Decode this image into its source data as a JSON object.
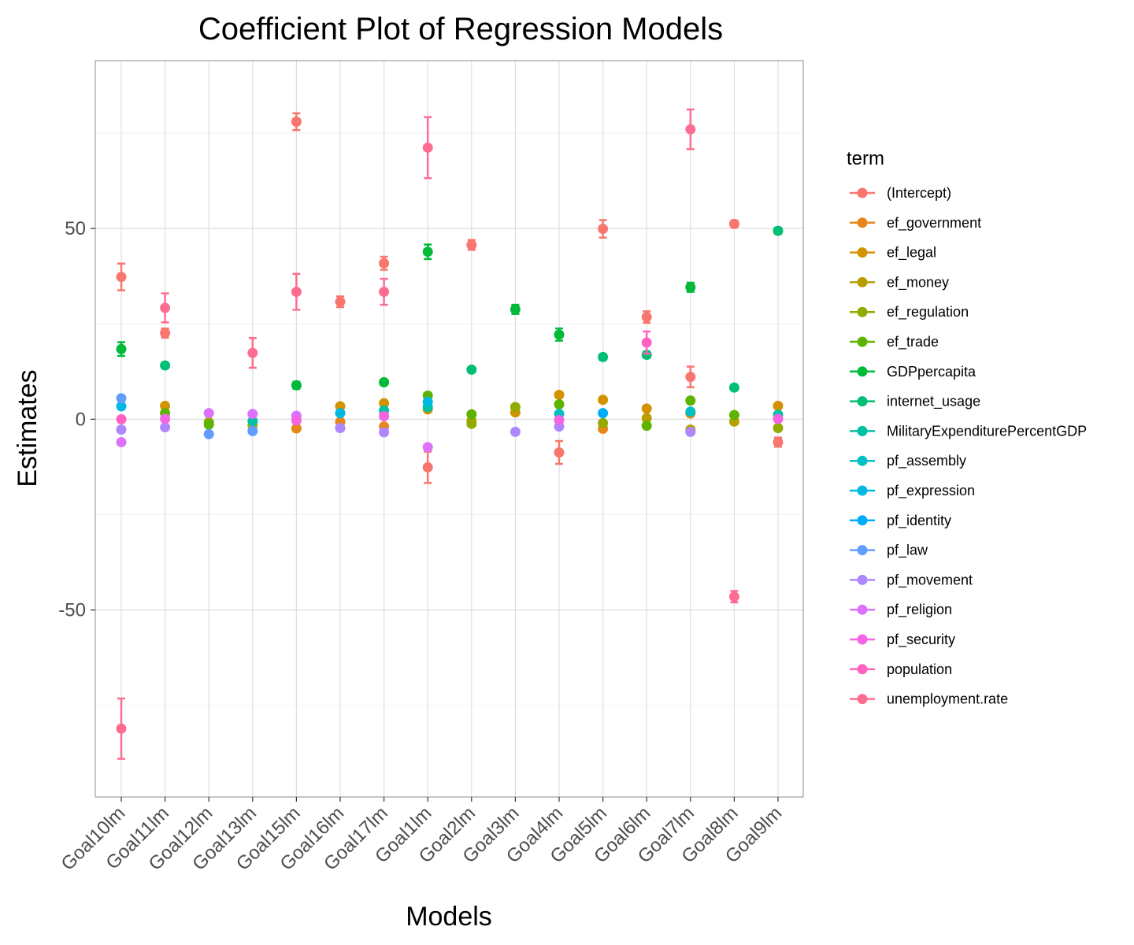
{
  "chart_data": {
    "type": "scatter",
    "title": "Coefficient Plot of Regression Models",
    "xlabel": "Models",
    "ylabel": "Estimates",
    "ylim": [
      -99,
      94
    ],
    "yticks": [
      -50,
      0,
      50
    ],
    "grid": true,
    "legend_title": "term",
    "legend_position": "right",
    "categories": [
      "Goal10lm",
      "Goal11lm",
      "Goal12lm",
      "Goal13lm",
      "Goal15lm",
      "Goal16lm",
      "Goal17lm",
      "Goal1lm",
      "Goal2lm",
      "Goal3lm",
      "Goal4lm",
      "Goal5lm",
      "Goal6lm",
      "Goal7lm",
      "Goal8lm",
      "Goal9lm"
    ],
    "series": [
      {
        "name": "(Intercept)",
        "color": "#F8766D",
        "points": [
          {
            "x": "Goal10lm",
            "y": 37.3,
            "lo": 33.8,
            "hi": 40.8
          },
          {
            "x": "Goal11lm",
            "y": 22.6,
            "lo": 21.4,
            "hi": 23.8
          },
          {
            "x": "Goal15lm",
            "y": 78.0,
            "lo": 75.8,
            "hi": 80.2
          },
          {
            "x": "Goal16lm",
            "y": 30.8,
            "lo": 29.4,
            "hi": 32.2
          },
          {
            "x": "Goal17lm",
            "y": 40.9,
            "lo": 39.2,
            "hi": 42.6
          },
          {
            "x": "Goal1lm",
            "y": -12.6,
            "lo": -16.7,
            "hi": -8.5
          },
          {
            "x": "Goal2lm",
            "y": 45.7,
            "lo": 44.4,
            "hi": 47.0
          },
          {
            "x": "Goal4lm",
            "y": -8.7,
            "lo": -11.7,
            "hi": -5.7
          },
          {
            "x": "Goal5lm",
            "y": 49.9,
            "lo": 47.6,
            "hi": 52.2
          },
          {
            "x": "Goal6lm",
            "y": 26.8,
            "lo": 25.3,
            "hi": 28.3
          },
          {
            "x": "Goal7lm",
            "y": 11.1,
            "lo": 8.4,
            "hi": 13.8
          },
          {
            "x": "Goal8lm",
            "y": 51.2,
            "lo": 50.3,
            "hi": 52.1
          },
          {
            "x": "Goal9lm",
            "y": -6.0,
            "lo": -7.2,
            "hi": -4.8
          }
        ]
      },
      {
        "name": "ef_government",
        "color": "#E7861B",
        "points": [
          {
            "x": "Goal15lm",
            "y": -2.4,
            "lo": -2.9,
            "hi": -1.9
          },
          {
            "x": "Goal16lm",
            "y": -0.7,
            "lo": -1.1,
            "hi": -0.3
          },
          {
            "x": "Goal17lm",
            "y": -1.9,
            "lo": -2.3,
            "hi": -1.5
          },
          {
            "x": "Goal5lm",
            "y": -2.5,
            "lo": -3.0,
            "hi": -2.0
          },
          {
            "x": "Goal7lm",
            "y": 1.5,
            "lo": 1.1,
            "hi": 1.9
          }
        ]
      },
      {
        "name": "ef_legal",
        "color": "#D39200",
        "points": [
          {
            "x": "Goal11lm",
            "y": 3.5,
            "lo": 3.0,
            "hi": 4.0
          },
          {
            "x": "Goal16lm",
            "y": 3.4,
            "lo": 2.9,
            "hi": 3.9
          },
          {
            "x": "Goal17lm",
            "y": 4.2,
            "lo": 3.7,
            "hi": 4.7
          },
          {
            "x": "Goal1lm",
            "y": 2.6,
            "lo": 2.0,
            "hi": 3.2
          },
          {
            "x": "Goal3lm",
            "y": 1.8,
            "lo": 1.3,
            "hi": 2.3
          },
          {
            "x": "Goal4lm",
            "y": 6.4,
            "lo": 5.8,
            "hi": 7.0
          },
          {
            "x": "Goal5lm",
            "y": 5.1,
            "lo": 4.6,
            "hi": 5.6
          },
          {
            "x": "Goal6lm",
            "y": 2.8,
            "lo": 2.3,
            "hi": 3.3
          },
          {
            "x": "Goal9lm",
            "y": 3.5,
            "lo": 3.0,
            "hi": 4.0
          }
        ]
      },
      {
        "name": "ef_money",
        "color": "#B79F00",
        "points": [
          {
            "x": "Goal13lm",
            "y": -1.6,
            "lo": -2.0,
            "hi": -1.2
          },
          {
            "x": "Goal2lm",
            "y": -0.4,
            "lo": -0.8,
            "hi": 0.0
          },
          {
            "x": "Goal6lm",
            "y": 0.3,
            "lo": -0.1,
            "hi": 0.7
          },
          {
            "x": "Goal7lm",
            "y": -2.7,
            "lo": -3.1,
            "hi": -2.3
          },
          {
            "x": "Goal8lm",
            "y": -0.6,
            "lo": -1.0,
            "hi": -0.2
          }
        ]
      },
      {
        "name": "ef_regulation",
        "color": "#93AA00",
        "points": [
          {
            "x": "Goal12lm",
            "y": -0.8,
            "lo": -1.2,
            "hi": -0.4
          },
          {
            "x": "Goal2lm",
            "y": -1.2,
            "lo": -1.6,
            "hi": -0.8
          },
          {
            "x": "Goal3lm",
            "y": 3.2,
            "lo": 2.7,
            "hi": 3.7
          },
          {
            "x": "Goal5lm",
            "y": -1.0,
            "lo": -1.4,
            "hi": -0.6
          },
          {
            "x": "Goal9lm",
            "y": -2.3,
            "lo": -2.8,
            "hi": -1.8
          }
        ]
      },
      {
        "name": "ef_trade",
        "color": "#5EB300",
        "points": [
          {
            "x": "Goal11lm",
            "y": 1.6,
            "lo": 1.2,
            "hi": 2.0
          },
          {
            "x": "Goal12lm",
            "y": -1.4,
            "lo": -1.8,
            "hi": -1.0
          },
          {
            "x": "Goal1lm",
            "y": 6.2,
            "lo": 5.6,
            "hi": 6.8
          },
          {
            "x": "Goal2lm",
            "y": 1.3,
            "lo": 0.9,
            "hi": 1.7
          },
          {
            "x": "Goal4lm",
            "y": 3.9,
            "lo": 3.3,
            "hi": 4.5
          },
          {
            "x": "Goal6lm",
            "y": -1.7,
            "lo": -2.1,
            "hi": -1.3
          },
          {
            "x": "Goal7lm",
            "y": 4.9,
            "lo": 4.3,
            "hi": 5.5
          },
          {
            "x": "Goal8lm",
            "y": 1.1,
            "lo": 0.7,
            "hi": 1.5
          }
        ]
      },
      {
        "name": "GDPpercapita",
        "color": "#00BA38",
        "points": [
          {
            "x": "Goal10lm",
            "y": 18.4,
            "lo": 16.6,
            "hi": 20.2
          },
          {
            "x": "Goal15lm",
            "y": 8.9,
            "lo": 8.0,
            "hi": 9.8
          },
          {
            "x": "Goal17lm",
            "y": 9.7,
            "lo": 9.0,
            "hi": 10.4
          },
          {
            "x": "Goal1lm",
            "y": 43.9,
            "lo": 42.0,
            "hi": 45.8
          },
          {
            "x": "Goal3lm",
            "y": 28.8,
            "lo": 27.6,
            "hi": 30.0
          },
          {
            "x": "Goal4lm",
            "y": 22.2,
            "lo": 20.6,
            "hi": 23.8
          },
          {
            "x": "Goal7lm",
            "y": 34.6,
            "lo": 33.4,
            "hi": 35.8
          }
        ]
      },
      {
        "name": "internet_usage",
        "color": "#00BF74",
        "points": [
          {
            "x": "Goal11lm",
            "y": 14.1,
            "lo": 13.4,
            "hi": 14.8
          },
          {
            "x": "Goal2lm",
            "y": 13.0,
            "lo": 12.4,
            "hi": 13.6
          },
          {
            "x": "Goal5lm",
            "y": 16.3,
            "lo": 15.5,
            "hi": 17.1
          },
          {
            "x": "Goal6lm",
            "y": 16.9,
            "lo": 16.1,
            "hi": 17.7
          },
          {
            "x": "Goal8lm",
            "y": 8.3,
            "lo": 7.6,
            "hi": 9.0
          },
          {
            "x": "Goal9lm",
            "y": 49.4,
            "lo": 48.6,
            "hi": 50.2
          }
        ]
      },
      {
        "name": "MilitaryExpenditurePercentGDP",
        "color": "#00C1A3",
        "points": [
          {
            "x": "Goal13lm",
            "y": -0.5,
            "lo": -0.9,
            "hi": -0.1
          },
          {
            "x": "Goal17lm",
            "y": 2.3,
            "lo": 1.9,
            "hi": 2.7
          },
          {
            "x": "Goal1lm",
            "y": 3.2,
            "lo": 2.7,
            "hi": 3.7
          },
          {
            "x": "Goal9lm",
            "y": 1.2,
            "lo": 0.8,
            "hi": 1.6
          }
        ]
      },
      {
        "name": "pf_assembly",
        "color": "#00BFC4",
        "points": [
          {
            "x": "Goal4lm",
            "y": 1.4,
            "lo": 1.0,
            "hi": 1.8
          },
          {
            "x": "Goal7lm",
            "y": 2.0,
            "lo": 1.6,
            "hi": 2.4
          }
        ]
      },
      {
        "name": "pf_expression",
        "color": "#00B9E3",
        "points": [
          {
            "x": "Goal10lm",
            "y": 3.4,
            "lo": 2.8,
            "hi": 4.0
          },
          {
            "x": "Goal16lm",
            "y": 1.6,
            "lo": 1.2,
            "hi": 2.0
          },
          {
            "x": "Goal1lm",
            "y": 4.6,
            "lo": 4.0,
            "hi": 5.2
          }
        ]
      },
      {
        "name": "pf_identity",
        "color": "#00ADFA",
        "points": [
          {
            "x": "Goal5lm",
            "y": 1.6,
            "lo": 1.2,
            "hi": 2.0
          }
        ]
      },
      {
        "name": "pf_law",
        "color": "#619CFF",
        "points": [
          {
            "x": "Goal10lm",
            "y": 5.5,
            "lo": 4.9,
            "hi": 6.1
          },
          {
            "x": "Goal12lm",
            "y": -3.9,
            "lo": -4.4,
            "hi": -3.4
          },
          {
            "x": "Goal13lm",
            "y": -3.1,
            "lo": -3.6,
            "hi": -2.6
          }
        ]
      },
      {
        "name": "pf_movement",
        "color": "#AE87FF",
        "points": [
          {
            "x": "Goal10lm",
            "y": -2.7,
            "lo": -3.2,
            "hi": -2.2
          },
          {
            "x": "Goal11lm",
            "y": -2.1,
            "lo": -2.5,
            "hi": -1.7
          },
          {
            "x": "Goal16lm",
            "y": -2.3,
            "lo": -2.7,
            "hi": -1.9
          },
          {
            "x": "Goal17lm",
            "y": -3.4,
            "lo": -3.9,
            "hi": -2.9
          },
          {
            "x": "Goal3lm",
            "y": -3.3,
            "lo": -3.8,
            "hi": -2.8
          },
          {
            "x": "Goal4lm",
            "y": -1.9,
            "lo": -2.3,
            "hi": -1.5
          },
          {
            "x": "Goal7lm",
            "y": -3.3,
            "lo": -3.8,
            "hi": -2.8
          }
        ]
      },
      {
        "name": "pf_religion",
        "color": "#DB72FB",
        "points": [
          {
            "x": "Goal10lm",
            "y": -6.0,
            "lo": -6.6,
            "hi": -5.4
          },
          {
            "x": "Goal12lm",
            "y": 1.6,
            "lo": 1.2,
            "hi": 2.0
          },
          {
            "x": "Goal13lm",
            "y": 1.4,
            "lo": 1.0,
            "hi": 1.8
          },
          {
            "x": "Goal15lm",
            "y": 0.9,
            "lo": 0.5,
            "hi": 1.3
          },
          {
            "x": "Goal1lm",
            "y": -7.3,
            "lo": -7.9,
            "hi": -6.7
          }
        ]
      },
      {
        "name": "pf_security",
        "color": "#F564E3",
        "points": [
          {
            "x": "Goal11lm",
            "y": 0.1,
            "lo": -0.3,
            "hi": 0.5
          },
          {
            "x": "Goal15lm",
            "y": -0.3,
            "lo": -0.7,
            "hi": 0.1
          },
          {
            "x": "Goal17lm",
            "y": 0.8,
            "lo": 0.4,
            "hi": 1.2
          },
          {
            "x": "Goal4lm",
            "y": -0.2,
            "lo": -0.6,
            "hi": 0.2
          },
          {
            "x": "Goal9lm",
            "y": 0.1,
            "lo": -0.3,
            "hi": 0.5
          }
        ]
      },
      {
        "name": "population",
        "color": "#FF61C3",
        "points": [
          {
            "x": "Goal10lm",
            "y": 0.0,
            "lo": -0.4,
            "hi": 0.4
          },
          {
            "x": "Goal6lm",
            "y": 20.1,
            "lo": 17.2,
            "hi": 23.0
          }
        ]
      },
      {
        "name": "unemployment.rate",
        "color": "#FF6C91",
        "points": [
          {
            "x": "Goal10lm",
            "y": -81.1,
            "lo": -89.0,
            "hi": -73.2
          },
          {
            "x": "Goal11lm",
            "y": 29.2,
            "lo": 25.4,
            "hi": 33.0
          },
          {
            "x": "Goal13lm",
            "y": 17.4,
            "lo": 13.5,
            "hi": 21.3
          },
          {
            "x": "Goal15lm",
            "y": 33.4,
            "lo": 28.7,
            "hi": 38.1
          },
          {
            "x": "Goal17lm",
            "y": 33.4,
            "lo": 30.0,
            "hi": 36.8
          },
          {
            "x": "Goal1lm",
            "y": 71.2,
            "lo": 63.2,
            "hi": 79.2
          },
          {
            "x": "Goal7lm",
            "y": 76.0,
            "lo": 70.8,
            "hi": 81.2
          },
          {
            "x": "Goal8lm",
            "y": -46.5,
            "lo": -48.0,
            "hi": -45.0
          }
        ]
      }
    ]
  }
}
